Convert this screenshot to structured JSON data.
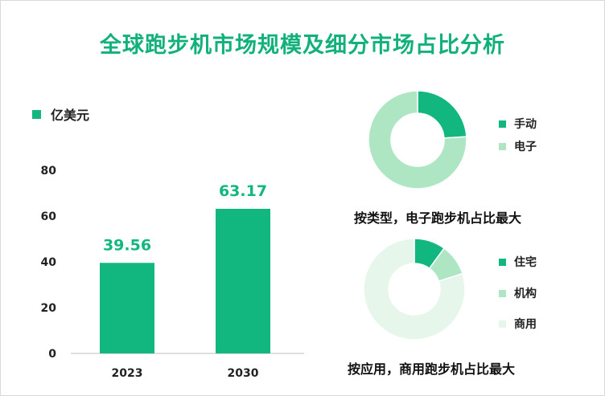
{
  "title": "全球跑步机市场规模及细分市场占比分析",
  "colors": {
    "primary": "#12b77f",
    "light": "#aee6c4",
    "lighter": "#e6f6ea",
    "title": "#12b07a"
  },
  "chart_data": [
    {
      "type": "bar",
      "legend": "亿美元",
      "categories": [
        "2023",
        "2030"
      ],
      "values": [
        39.56,
        63.17
      ],
      "value_labels": [
        "39.56",
        "63.17"
      ],
      "ylim": [
        0,
        80
      ],
      "yticks": [
        0,
        20,
        40,
        60,
        80
      ],
      "ytick_labels": [
        "0",
        "20",
        "40",
        "60",
        "80"
      ],
      "grid": false
    },
    {
      "type": "pie",
      "donut": true,
      "labels": [
        "手动",
        "电子"
      ],
      "values": [
        24,
        76
      ],
      "caption": "按类型，电子跑步机占比最大"
    },
    {
      "type": "pie",
      "donut": true,
      "labels": [
        "住宅",
        "机构",
        "商用"
      ],
      "values": [
        10,
        10,
        80
      ],
      "caption": "按应用，商用跑步机占比最大"
    }
  ]
}
